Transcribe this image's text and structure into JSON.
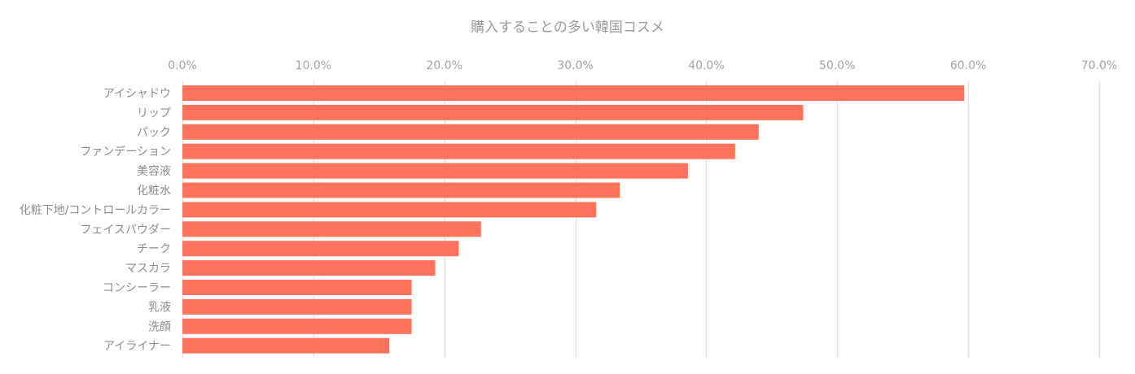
{
  "chart_data": {
    "type": "bar",
    "orientation": "horizontal",
    "title": "購入することの多い韓国コスメ",
    "categories": [
      "アイシャドウ",
      "リップ",
      "パック",
      "ファンデーション",
      "美容液",
      "化粧水",
      "化粧下地/コントロールカラー",
      "フェイスパウダー",
      "チーク",
      "マスカラ",
      "コンシーラー",
      "乳液",
      "洗顔",
      "アイライナー"
    ],
    "values": [
      59.7,
      47.4,
      44.0,
      42.2,
      38.6,
      33.4,
      31.6,
      22.8,
      21.1,
      19.3,
      17.5,
      17.5,
      17.5,
      15.8
    ],
    "xlim": [
      0,
      70
    ],
    "tick_values": [
      0,
      10,
      20,
      30,
      40,
      50,
      60,
      70
    ],
    "tick_labels": [
      "0.0%",
      "10.0%",
      "20.0%",
      "30.0%",
      "40.0%",
      "50.0%",
      "60.0%",
      "70.0%"
    ],
    "xaxis_position": "top",
    "grid": true,
    "legend": false,
    "colors": {
      "bar": "#fb735d",
      "grid": "#e2e2e2",
      "text": "#8c8c8c"
    }
  }
}
